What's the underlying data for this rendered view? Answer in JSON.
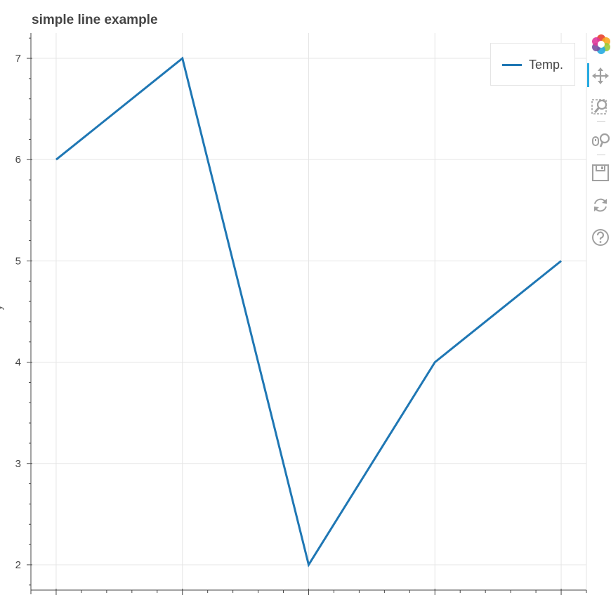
{
  "chart_data": {
    "type": "line",
    "title": "simple line example",
    "xlabel": "",
    "ylabel": "y",
    "x": [
      1,
      2,
      3,
      4,
      5
    ],
    "series": [
      {
        "name": "Temp.",
        "values": [
          6,
          7,
          2,
          4,
          5
        ]
      }
    ],
    "xlim": [
      0.8,
      5.2
    ],
    "ylim": [
      1.75,
      7.25
    ],
    "yticks": [
      2,
      3,
      4,
      5,
      6,
      7
    ],
    "grid": true,
    "legend_position": "top-right"
  },
  "colors": {
    "series": "#1f77b4",
    "grid": "#e5e5e5",
    "axis": "#444444",
    "toolbar_active": "#26aae1",
    "toolbar_icon": "#a0a0a0"
  },
  "toolbar": {
    "tools": [
      {
        "name": "bokeh-logo-icon"
      },
      {
        "name": "pan-icon",
        "active": true
      },
      {
        "name": "box-zoom-icon"
      },
      {
        "name": "wheel-zoom-icon"
      },
      {
        "name": "save-icon"
      },
      {
        "name": "reset-icon"
      },
      {
        "name": "help-icon"
      }
    ]
  }
}
